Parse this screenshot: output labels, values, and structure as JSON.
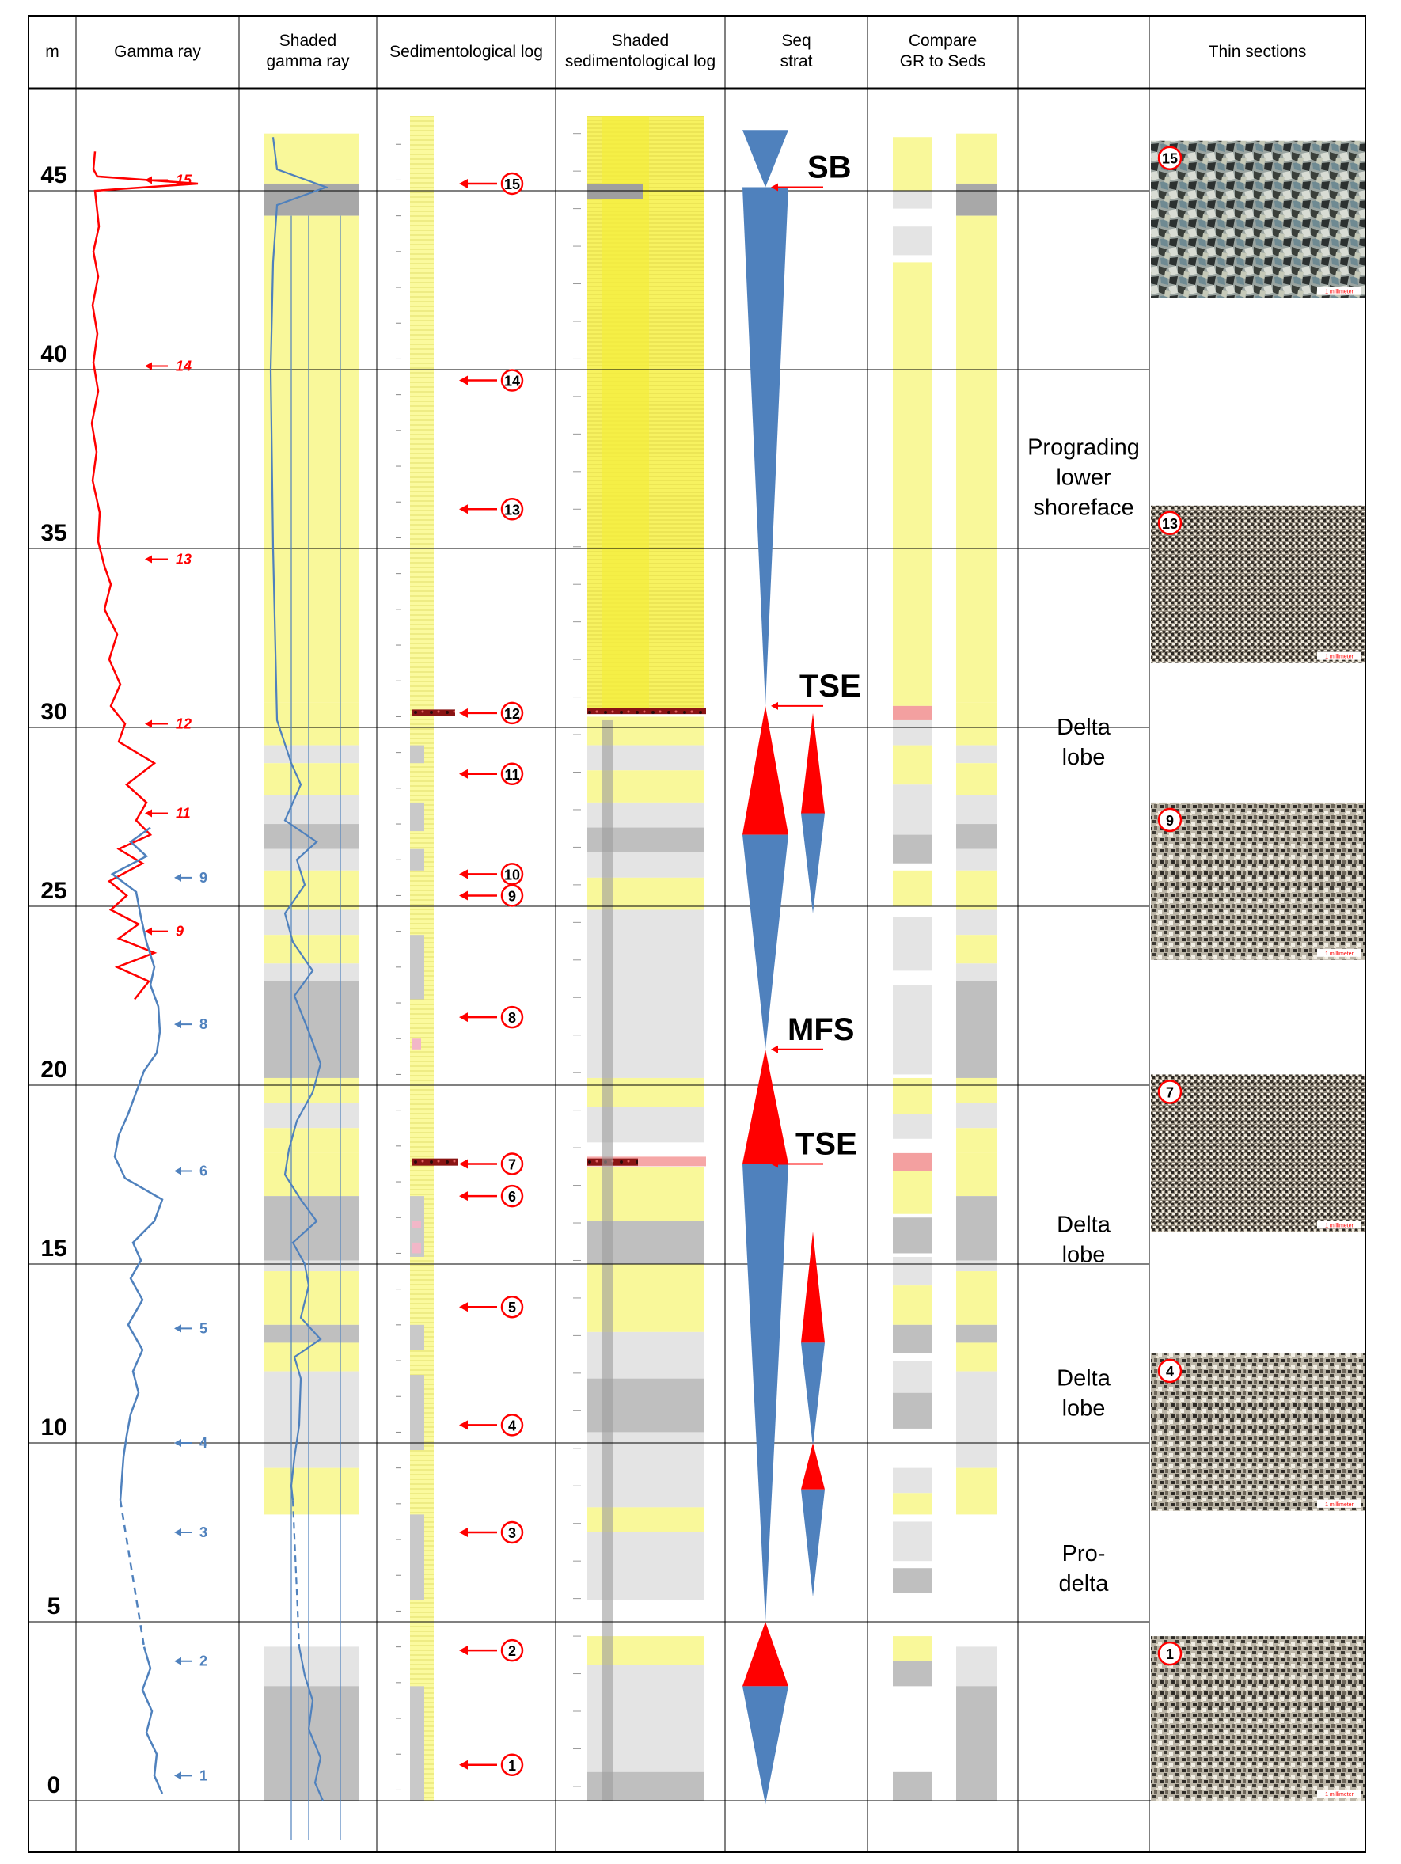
{
  "headers": [
    {
      "key": "m",
      "text": [
        "m"
      ]
    },
    {
      "key": "gamma-ray",
      "text": [
        "Gamma ray"
      ]
    },
    {
      "key": "shaded-gamma-ray",
      "text": [
        "Shaded",
        "gamma ray"
      ]
    },
    {
      "key": "sedimentological-log",
      "text": [
        "Sedimentological log"
      ]
    },
    {
      "key": "shaded-sedimentological-log",
      "text": [
        "Shaded",
        "sedimentological log"
      ]
    },
    {
      "key": "seq-strat",
      "text": [
        "Seq",
        "strat"
      ]
    },
    {
      "key": "compare-gr-seds",
      "text": [
        "Compare",
        "GR to Seds"
      ]
    },
    {
      "key": "interpretation",
      "text": [
        ""
      ]
    },
    {
      "key": "thin-sections",
      "text": [
        "Thin sections"
      ]
    }
  ],
  "depth_axis": {
    "unit": "m",
    "ticks": [
      0,
      5,
      10,
      15,
      20,
      25,
      30,
      35,
      40,
      45
    ]
  },
  "gamma_ray": {
    "red_labels": [
      {
        "label": "15",
        "depth": 45.3
      },
      {
        "label": "14",
        "depth": 40.1
      },
      {
        "label": "13",
        "depth": 34.7
      },
      {
        "label": "12",
        "depth": 30.1
      },
      {
        "label": "11",
        "depth": 27.6
      },
      {
        "label": "9",
        "depth": 24.3
      }
    ],
    "blue_labels": [
      {
        "label": "9",
        "depth": 25.8
      },
      {
        "label": "8",
        "depth": 21.7
      },
      {
        "label": "6",
        "depth": 17.6
      },
      {
        "label": "5",
        "depth": 13.2
      },
      {
        "label": "4",
        "depth": 10.0
      },
      {
        "label": "3",
        "depth": 7.5
      },
      {
        "label": "2",
        "depth": 3.9
      },
      {
        "label": "1",
        "depth": 0.7
      }
    ]
  },
  "sed_log_samples": [
    {
      "label": "15",
      "depth": 45.2
    },
    {
      "label": "14",
      "depth": 39.7
    },
    {
      "label": "13",
      "depth": 36.1
    },
    {
      "label": "12",
      "depth": 30.4
    },
    {
      "label": "11",
      "depth": 28.7
    },
    {
      "label": "10",
      "depth": 25.9
    },
    {
      "label": "9",
      "depth": 25.3
    },
    {
      "label": "8",
      "depth": 21.9
    },
    {
      "label": "7",
      "depth": 17.8
    },
    {
      "label": "6",
      "depth": 16.9
    },
    {
      "label": "5",
      "depth": 13.8
    },
    {
      "label": "4",
      "depth": 10.5
    },
    {
      "label": "3",
      "depth": 7.5
    },
    {
      "label": "2",
      "depth": 4.2
    },
    {
      "label": "1",
      "depth": 1.0
    }
  ],
  "seq_strat": {
    "surfaces": [
      {
        "label": "SB",
        "depth": 45.1
      },
      {
        "label": "TSE",
        "depth": 30.6
      },
      {
        "label": "MFS",
        "depth": 21.0
      },
      {
        "label": "TSE",
        "depth": 17.8
      }
    ]
  },
  "interpretations": [
    {
      "text": [
        "Prograding",
        "lower",
        "shoreface"
      ],
      "depth": 37.0
    },
    {
      "text": [
        "Delta",
        "lobe"
      ],
      "depth": 29.6
    },
    {
      "text": [
        "Delta",
        "lobe"
      ],
      "depth": 15.7
    },
    {
      "text": [
        "Delta",
        "lobe"
      ],
      "depth": 11.4
    },
    {
      "text": [
        "Pro-",
        "delta"
      ],
      "depth": 6.5
    }
  ],
  "thin_sections": [
    {
      "label": "15",
      "top_depth": 46.4,
      "bottom_depth": 42.0,
      "tone": "coarse"
    },
    {
      "label": "13",
      "top_depth": 36.2,
      "bottom_depth": 31.8,
      "tone": "fine"
    },
    {
      "label": "9",
      "top_depth": 27.9,
      "bottom_depth": 23.5,
      "tone": "medium"
    },
    {
      "label": "7",
      "top_depth": 20.3,
      "bottom_depth": 15.9,
      "tone": "fine"
    },
    {
      "label": "4",
      "top_depth": 12.5,
      "bottom_depth": 8.1,
      "tone": "medium"
    },
    {
      "label": "1",
      "top_depth": 4.6,
      "bottom_depth": 0.0,
      "tone": "medium"
    }
  ],
  "scale_bar_text": "1 millimeter",
  "colors": {
    "sand": "#f9f89a",
    "shale_light": "#e4e4e4",
    "shale_dark": "#bfbfbf",
    "blue": "#4f81bd",
    "red": "#ff0000",
    "grid": "#000000"
  }
}
